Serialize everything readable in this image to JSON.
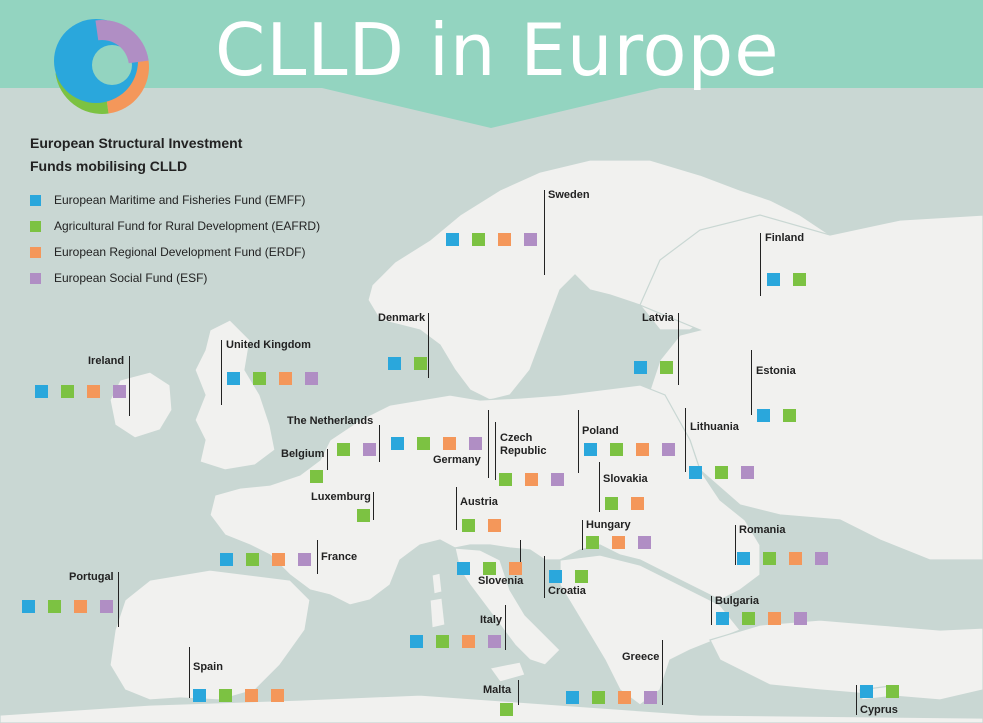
{
  "title": "CLLD in Europe",
  "legend": {
    "heading_line1": "European Structural Investment",
    "heading_line2": "Funds mobilising CLLD",
    "items": [
      {
        "key": "EMFF",
        "label": "European Maritime and Fisheries Fund (EMFF)",
        "color": "#2aa7dc"
      },
      {
        "key": "EAFRD",
        "label": "Agricultural Fund for Rural Development (EAFRD)",
        "color": "#7cc242"
      },
      {
        "key": "ERDF",
        "label": "European Regional Development Fund (ERDF)",
        "color": "#f4975a"
      },
      {
        "key": "ESF",
        "label": "European Social Fund (ESF)",
        "color": "#b08ec4"
      }
    ]
  },
  "colors": {
    "sea": "#c9d7d3",
    "land": "#f1f1ef",
    "border": "#c9d7d3",
    "banner": "#93d4c0",
    "logo_blue": "#2aa7dc",
    "logo_green": "#7cc242",
    "logo_orange": "#f4975a",
    "logo_purple": "#b08ec4"
  },
  "countries": [
    {
      "name": "Sweden",
      "funds": [
        "EMFF",
        "EAFRD",
        "ERDF",
        "ESF"
      ]
    },
    {
      "name": "Finland",
      "funds": [
        "EMFF",
        "EAFRD"
      ]
    },
    {
      "name": "Denmark",
      "funds": [
        "EMFF",
        "EAFRD"
      ]
    },
    {
      "name": "Latvia",
      "funds": [
        "EMFF",
        "EAFRD"
      ]
    },
    {
      "name": "Estonia",
      "funds": [
        "EMFF",
        "EAFRD"
      ]
    },
    {
      "name": "Ireland",
      "funds": [
        "EMFF",
        "EAFRD",
        "ERDF",
        "ESF"
      ]
    },
    {
      "name": "United Kingdom",
      "funds": [
        "EMFF",
        "EAFRD",
        "ERDF",
        "ESF"
      ]
    },
    {
      "name": "The Netherlands",
      "funds": [
        "EAFRD",
        "ESF"
      ]
    },
    {
      "name": "Germany",
      "funds": [
        "EMFF",
        "EAFRD",
        "ERDF",
        "ESF"
      ]
    },
    {
      "name": "Czech Republic",
      "funds": [
        "EAFRD",
        "ERDF",
        "ESF"
      ]
    },
    {
      "name": "Poland",
      "funds": [
        "EMFF",
        "EAFRD",
        "ERDF",
        "ESF"
      ]
    },
    {
      "name": "Lithuania",
      "funds": [
        "EMFF",
        "EAFRD",
        "ESF"
      ]
    },
    {
      "name": "Belgium",
      "funds": [
        "EAFRD"
      ]
    },
    {
      "name": "Luxemburg",
      "funds": [
        "EAFRD"
      ]
    },
    {
      "name": "Slovakia",
      "funds": [
        "EAFRD",
        "ERDF"
      ]
    },
    {
      "name": "Austria",
      "funds": [
        "EAFRD",
        "ERDF"
      ]
    },
    {
      "name": "Hungary",
      "funds": [
        "EAFRD",
        "ERDF",
        "ESF"
      ]
    },
    {
      "name": "Romania",
      "funds": [
        "EMFF",
        "EAFRD",
        "ERDF",
        "ESF"
      ]
    },
    {
      "name": "France",
      "funds": [
        "EMFF",
        "EAFRD",
        "ERDF",
        "ESF"
      ]
    },
    {
      "name": "Slovenia",
      "funds": [
        "EMFF",
        "EAFRD",
        "ERDF"
      ]
    },
    {
      "name": "Croatia",
      "funds": [
        "EMFF",
        "EAFRD"
      ]
    },
    {
      "name": "Portugal",
      "funds": [
        "EMFF",
        "EAFRD",
        "ERDF",
        "ESF"
      ]
    },
    {
      "name": "Bulgaria",
      "funds": [
        "EMFF",
        "EAFRD",
        "ERDF",
        "ESF"
      ]
    },
    {
      "name": "Italy",
      "funds": [
        "EMFF",
        "EAFRD",
        "ERDF",
        "ESF"
      ]
    },
    {
      "name": "Spain",
      "funds": [
        "EMFF",
        "EAFRD",
        "ERDF",
        "ERDF"
      ]
    },
    {
      "name": "Greece",
      "funds": [
        "EMFF",
        "EAFRD",
        "ERDF",
        "ESF"
      ]
    },
    {
      "name": "Malta",
      "funds": [
        "EAFRD"
      ]
    },
    {
      "name": "Cyprus",
      "funds": [
        "EMFF",
        "EAFRD"
      ]
    }
  ]
}
